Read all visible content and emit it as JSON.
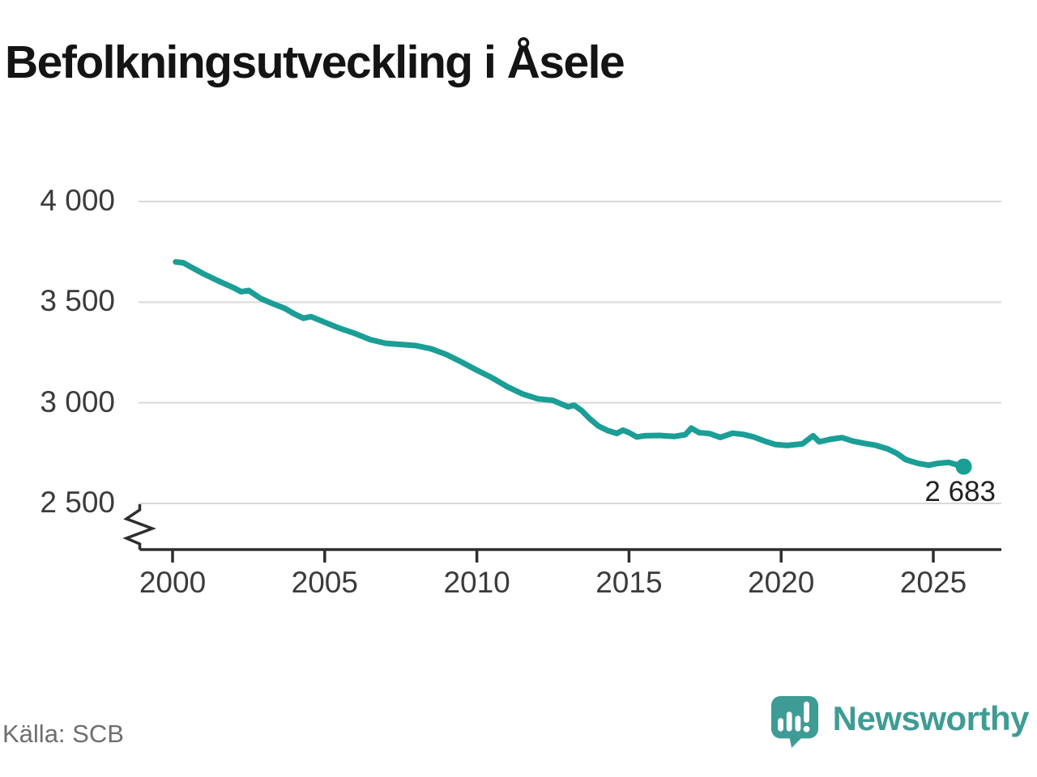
{
  "title": "Befolkningsutveckling i Åsele",
  "source": "Källa: SCB",
  "branding": {
    "name": "Newsworthy"
  },
  "annotation": {
    "last_value_label": "2 683"
  },
  "colors": {
    "line": "#1a9e96",
    "gridline": "#d9d9d9",
    "axis": "#2e2e2e",
    "brand_teal": "#3f9c95"
  },
  "chart_data": {
    "type": "line",
    "title": "Befolkningsutveckling i Åsele",
    "xlabel": "",
    "ylabel": "",
    "grid": "horizontal",
    "legend": "none",
    "axis_break": true,
    "x_ticks": [
      2000,
      2005,
      2010,
      2015,
      2020,
      2025
    ],
    "x_tick_labels": [
      "2000",
      "2005",
      "2010",
      "2015",
      "2020",
      "2025"
    ],
    "y_ticks": [
      4000,
      3500,
      3000,
      2500
    ],
    "y_tick_labels": [
      "4 000",
      "3 500",
      "3 000",
      "2 500"
    ],
    "x_range": [
      1999,
      2027.2
    ],
    "y_range": [
      2500,
      4000
    ],
    "last_point": {
      "x": 2026.0,
      "y": 2683,
      "label": "2 683"
    },
    "series": [
      {
        "name": "Befolkning",
        "points": [
          [
            2000.1,
            3700
          ],
          [
            2000.35,
            3696
          ],
          [
            2000.6,
            3675
          ],
          [
            2001.0,
            3642
          ],
          [
            2001.5,
            3606
          ],
          [
            2002.0,
            3572
          ],
          [
            2002.25,
            3552
          ],
          [
            2002.5,
            3558
          ],
          [
            2002.9,
            3518
          ],
          [
            2003.3,
            3492
          ],
          [
            2003.7,
            3468
          ],
          [
            2004.0,
            3442
          ],
          [
            2004.3,
            3420
          ],
          [
            2004.55,
            3428
          ],
          [
            2005.0,
            3400
          ],
          [
            2005.5,
            3370
          ],
          [
            2006.0,
            3344
          ],
          [
            2006.5,
            3314
          ],
          [
            2007.0,
            3296
          ],
          [
            2007.5,
            3290
          ],
          [
            2008.0,
            3284
          ],
          [
            2008.5,
            3268
          ],
          [
            2009.0,
            3240
          ],
          [
            2009.5,
            3202
          ],
          [
            2010.0,
            3162
          ],
          [
            2010.5,
            3124
          ],
          [
            2011.0,
            3080
          ],
          [
            2011.5,
            3044
          ],
          [
            2012.0,
            3020
          ],
          [
            2012.5,
            3012
          ],
          [
            2012.75,
            2996
          ],
          [
            2013.0,
            2980
          ],
          [
            2013.2,
            2988
          ],
          [
            2013.45,
            2960
          ],
          [
            2013.7,
            2922
          ],
          [
            2014.0,
            2884
          ],
          [
            2014.3,
            2862
          ],
          [
            2014.6,
            2848
          ],
          [
            2014.8,
            2864
          ],
          [
            2015.0,
            2852
          ],
          [
            2015.25,
            2830
          ],
          [
            2015.5,
            2836
          ],
          [
            2016.0,
            2838
          ],
          [
            2016.5,
            2833
          ],
          [
            2016.85,
            2842
          ],
          [
            2017.05,
            2874
          ],
          [
            2017.3,
            2852
          ],
          [
            2017.65,
            2847
          ],
          [
            2018.0,
            2828
          ],
          [
            2018.4,
            2849
          ],
          [
            2018.75,
            2843
          ],
          [
            2019.1,
            2830
          ],
          [
            2019.45,
            2810
          ],
          [
            2019.8,
            2793
          ],
          [
            2020.2,
            2788
          ],
          [
            2020.7,
            2796
          ],
          [
            2021.05,
            2836
          ],
          [
            2021.25,
            2806
          ],
          [
            2021.6,
            2818
          ],
          [
            2022.0,
            2827
          ],
          [
            2022.35,
            2810
          ],
          [
            2022.7,
            2799
          ],
          [
            2023.1,
            2789
          ],
          [
            2023.5,
            2771
          ],
          [
            2023.8,
            2749
          ],
          [
            2024.1,
            2717
          ],
          [
            2024.5,
            2699
          ],
          [
            2024.85,
            2690
          ],
          [
            2025.15,
            2699
          ],
          [
            2025.5,
            2704
          ],
          [
            2025.8,
            2691
          ],
          [
            2026.0,
            2683
          ]
        ]
      }
    ]
  }
}
